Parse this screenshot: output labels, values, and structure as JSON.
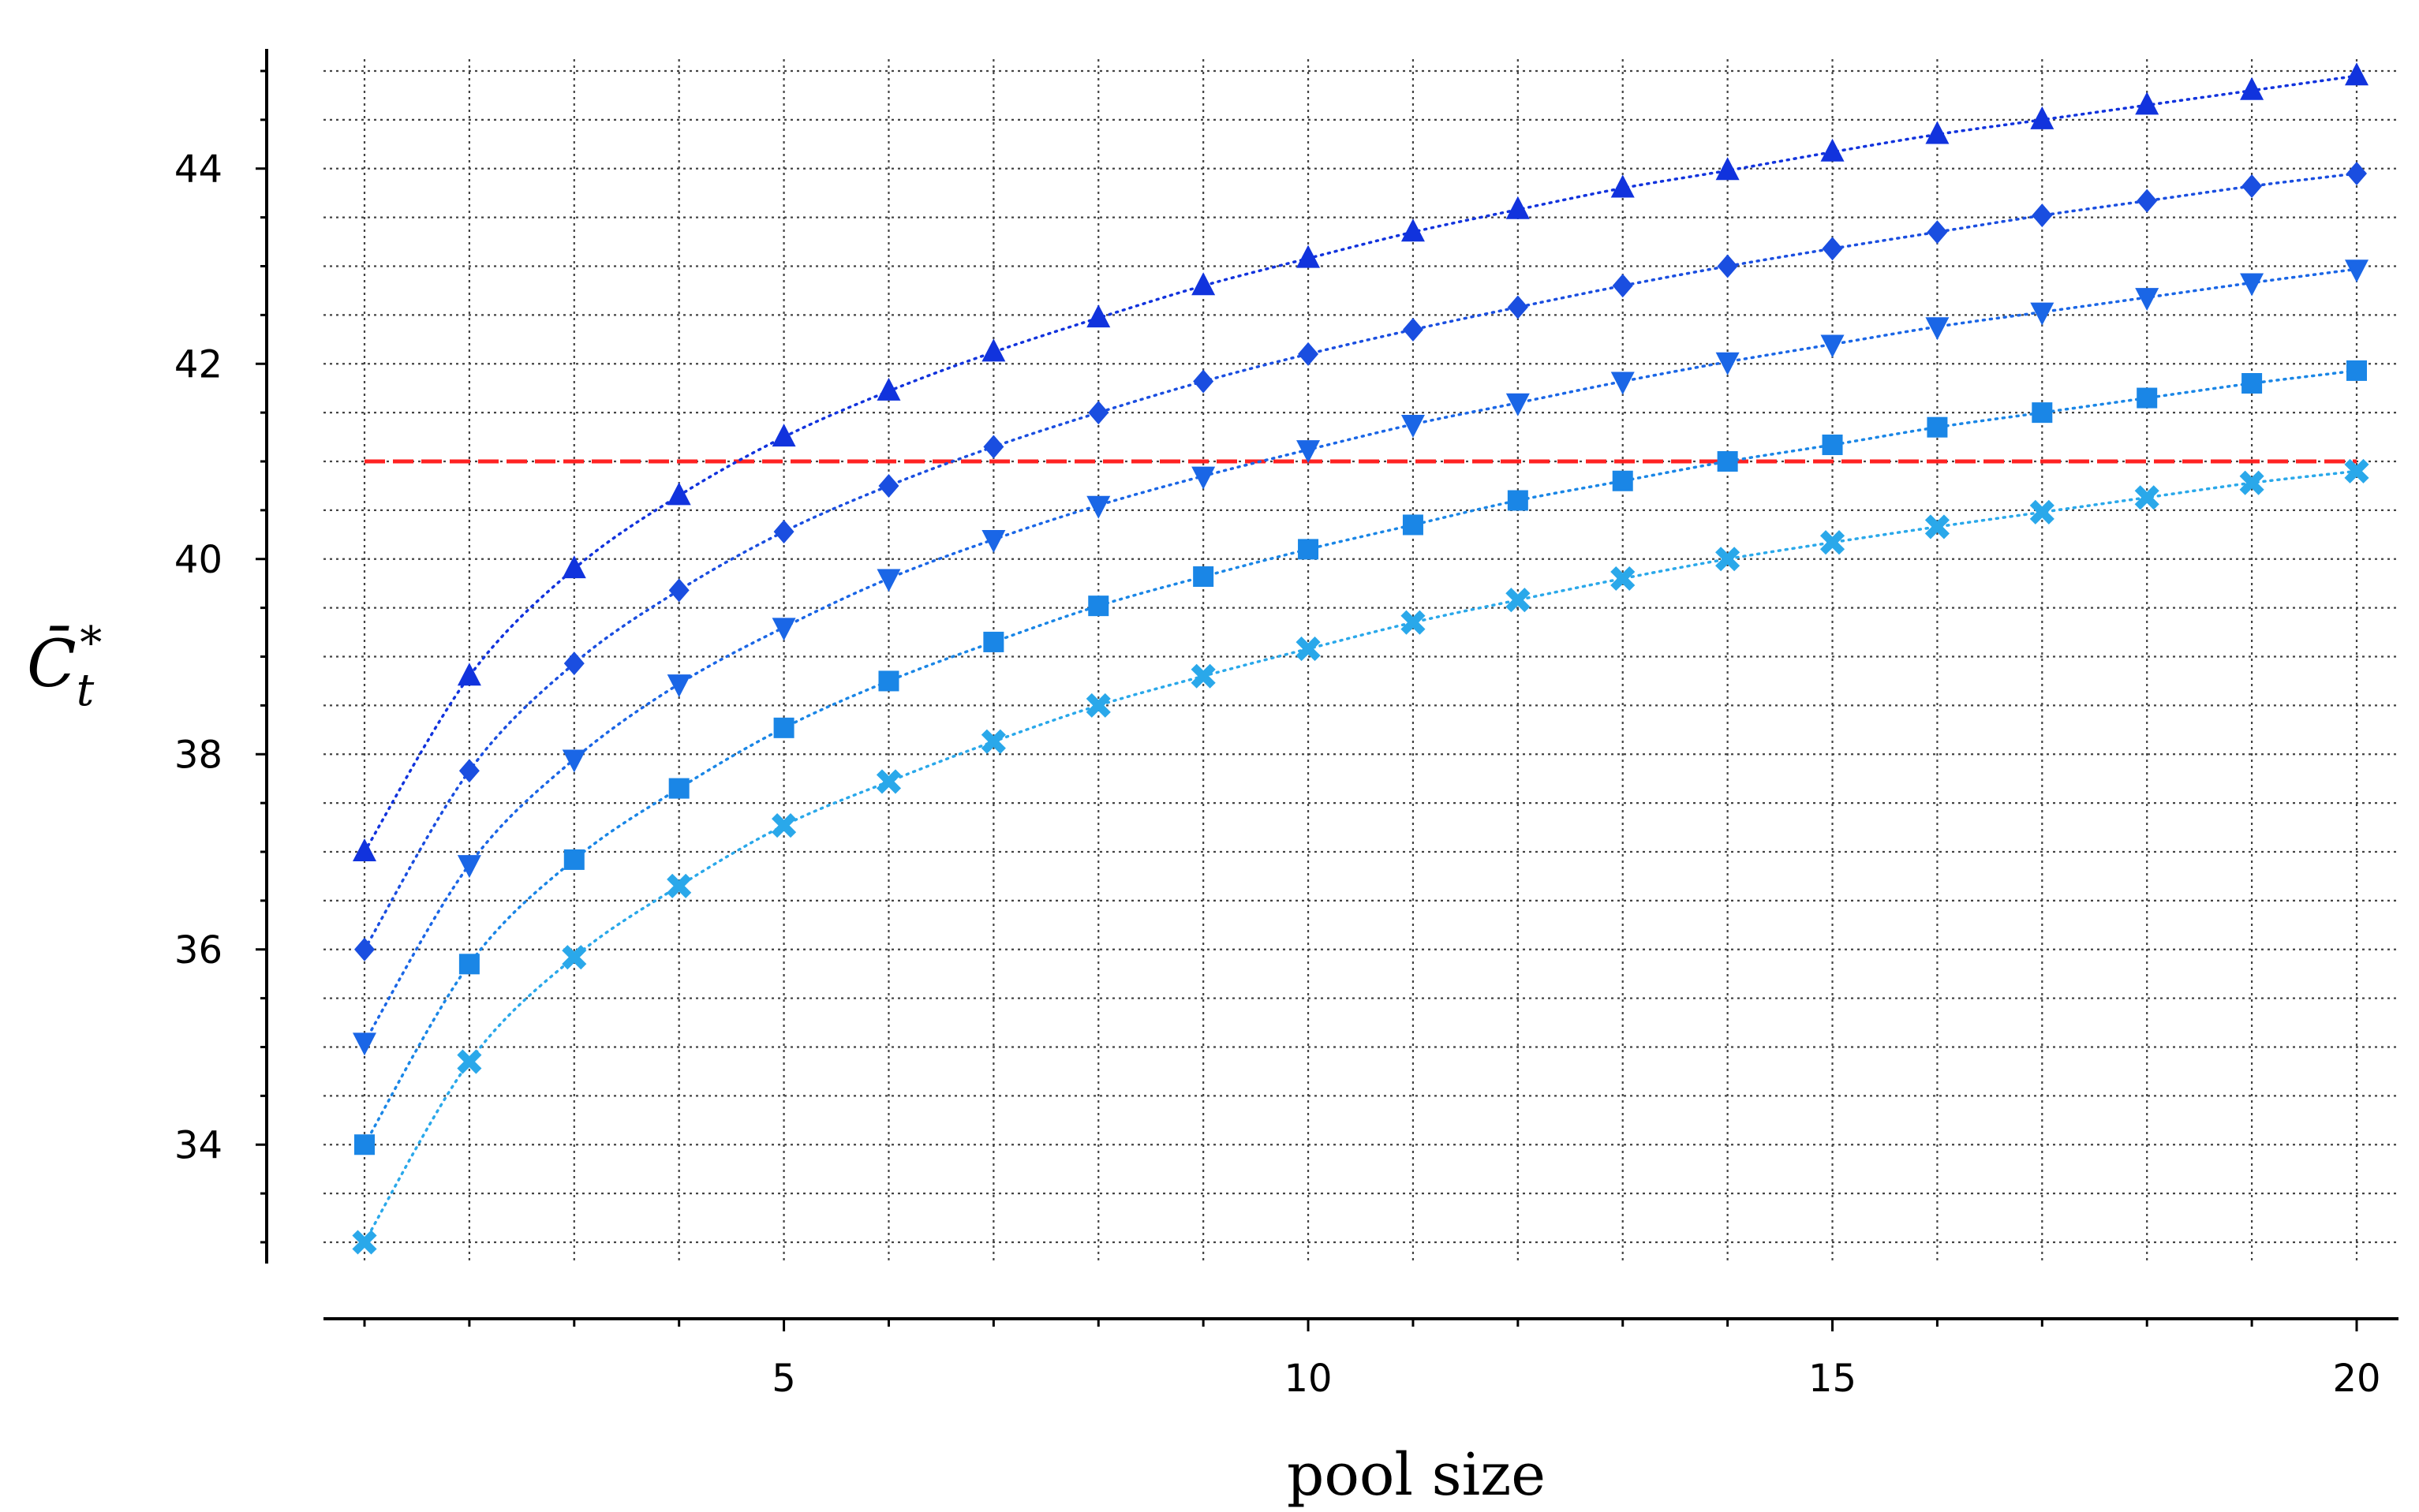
{
  "chart_data": {
    "type": "line",
    "xlabel": "pool size",
    "ylabel": "C̄*t",
    "xlim": [
      1,
      20
    ],
    "ylim": [
      32.9,
      45.1
    ],
    "x_ticks": [
      5,
      10,
      15,
      20
    ],
    "x_tick_labels": [
      "5",
      "10",
      "15",
      "20"
    ],
    "y_ticks": [
      34,
      36,
      38,
      40,
      42,
      44
    ],
    "y_tick_labels": [
      "34",
      "36",
      "38",
      "40",
      "42",
      "44"
    ],
    "grid": true,
    "reference_line": {
      "y": 41,
      "color": "#ff2222"
    },
    "x": [
      1,
      2,
      3,
      4,
      5,
      6,
      7,
      8,
      9,
      10,
      11,
      12,
      13,
      14,
      15,
      16,
      17,
      18,
      19,
      20
    ],
    "series": [
      {
        "marker": "triangle-up",
        "color": "#1133dd",
        "values": [
          37.0,
          38.8,
          39.9,
          40.65,
          41.25,
          41.72,
          42.12,
          42.47,
          42.8,
          43.08,
          43.35,
          43.58,
          43.8,
          43.98,
          44.17,
          44.35,
          44.5,
          44.65,
          44.8,
          44.95
        ]
      },
      {
        "marker": "diamond",
        "color": "#1a4ee0",
        "values": [
          36.0,
          37.83,
          38.93,
          39.68,
          40.28,
          40.75,
          41.15,
          41.5,
          41.82,
          42.1,
          42.35,
          42.58,
          42.8,
          43.0,
          43.18,
          43.35,
          43.52,
          43.67,
          43.82,
          43.95
        ]
      },
      {
        "marker": "triangle-down",
        "color": "#1a66e6",
        "values": [
          35.05,
          36.87,
          37.95,
          38.72,
          39.3,
          39.8,
          40.2,
          40.55,
          40.85,
          41.12,
          41.38,
          41.6,
          41.82,
          42.02,
          42.2,
          42.38,
          42.53,
          42.68,
          42.83,
          42.97
        ]
      },
      {
        "marker": "square",
        "color": "#1a86e6",
        "values": [
          34.0,
          35.85,
          36.92,
          37.65,
          38.27,
          38.75,
          39.15,
          39.52,
          39.82,
          40.1,
          40.35,
          40.6,
          40.8,
          41.0,
          41.17,
          41.35,
          41.5,
          41.65,
          41.8,
          41.93
        ]
      },
      {
        "marker": "x-filled",
        "color": "#2aa8ea",
        "values": [
          33.0,
          34.85,
          35.92,
          36.65,
          37.27,
          37.72,
          38.13,
          38.5,
          38.8,
          39.08,
          39.35,
          39.58,
          39.8,
          40.0,
          40.17,
          40.33,
          40.48,
          40.63,
          40.78,
          40.9
        ]
      }
    ]
  }
}
